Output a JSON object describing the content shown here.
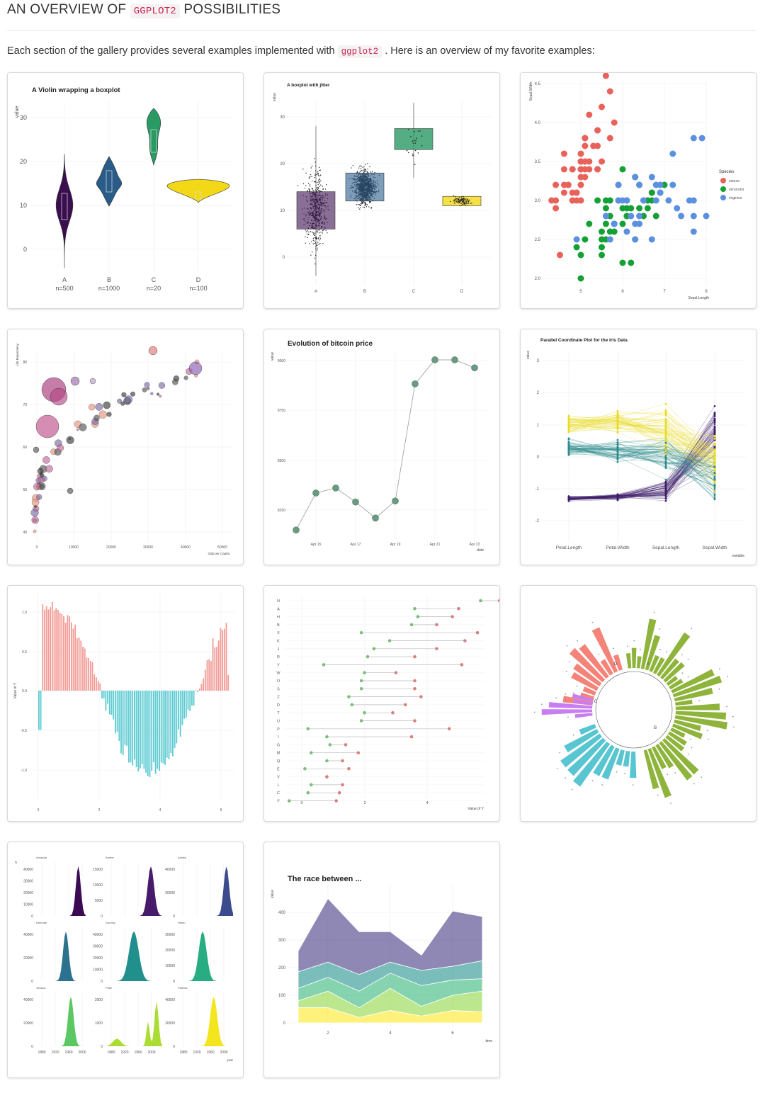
{
  "header": {
    "title_part1": "AN OVERVIEW OF",
    "title_code": "GGPLOT2",
    "title_part2": "POSSIBILITIES",
    "intro_part1": "Each section of the gallery provides several examples implemented with",
    "intro_code": "ggplot2",
    "intro_part2": ". Here is an overview of my favorite examples:"
  },
  "colors": {
    "violin_a": "#3b0f4f",
    "violin_b": "#2a5c8a",
    "violin_c": "#2a9a64",
    "violin_d": "#f2d816",
    "setosa": "#e8625a",
    "versicolor": "#14a035",
    "virginica": "#5b8fe0",
    "bitcoin": "#6a9a82",
    "pos": "#f29b96",
    "neg": "#5ccbd2"
  },
  "violin": {
    "title": "A Violin wrapping a boxplot",
    "ylabel": "value",
    "yticks": [
      "0",
      "10",
      "20",
      "30"
    ],
    "groups": [
      {
        "name": "A",
        "n": "n=500"
      },
      {
        "name": "B",
        "n": "n=1000"
      },
      {
        "name": "C",
        "n": "n=20"
      },
      {
        "name": "D",
        "n": "n=100"
      }
    ]
  },
  "jitter": {
    "title": "A boxplot with jitter",
    "ylabel": "value",
    "yticks": [
      "0",
      "10",
      "20",
      "30"
    ],
    "categories": [
      "A",
      "B",
      "C",
      "D"
    ]
  },
  "iris": {
    "ylabel": "Sepal.Width",
    "xlabel": "Sepal.Length",
    "yticks": [
      "2.0",
      "2.5",
      "3.0",
      "3.5",
      "4.0",
      "4.5"
    ],
    "xticks": [
      "5",
      "6",
      "7",
      "8"
    ],
    "legend_title": "Species",
    "legend": [
      "setosa",
      "versicolor",
      "virginica"
    ]
  },
  "bubble": {
    "ylabel": "Life Expectancy",
    "xlabel": "Gdp per Capita",
    "yticks": [
      "40",
      "50",
      "60",
      "70",
      "80"
    ],
    "xticks": [
      "0",
      "10000",
      "20000",
      "30000",
      "40000",
      "50000"
    ]
  },
  "bitcoin": {
    "title": "Evolution of bitcoin price",
    "ylabel": "value",
    "xlabel": "date",
    "yticks": [
      "8250",
      "8500",
      "8750",
      "9000"
    ],
    "xticks": [
      "Apr 15",
      "Apr 17",
      "Apr 19",
      "Apr 21",
      "Apr 23"
    ]
  },
  "parallel": {
    "title": "Parallel Coordinate Plot for the Iris Data",
    "ylabel": "value",
    "xlabel": "variable",
    "yticks": [
      "-2",
      "-1",
      "0",
      "1",
      "2",
      "3"
    ],
    "xticks": [
      "Petal.Length",
      "Petal.Width",
      "Sepal.Length",
      "Sepal.Width"
    ]
  },
  "diverging": {
    "ylabel": "Value of Y",
    "yticks": [
      "-1.0",
      "-0.5",
      "0.0",
      "0.5",
      "1.0"
    ],
    "xticks": [
      "0",
      "2",
      "4",
      "6"
    ]
  },
  "lollipop": {
    "xlabel": "Value of Y",
    "xticks": [
      "0",
      "2",
      "4"
    ],
    "categories": [
      "N",
      "A",
      "H",
      "B",
      "X",
      "K",
      "J",
      "R",
      "Y",
      "W",
      "O",
      "S",
      "Z",
      "D",
      "T",
      "U",
      "P",
      "I",
      "G",
      "M",
      "Q",
      "E",
      "V",
      "L",
      "C",
      "F"
    ]
  },
  "circular": {
    "groups": [
      "A",
      "B",
      "C",
      "D"
    ]
  },
  "density": {
    "panels": [
      {
        "name": "Amanda",
        "yticks": [
          "0",
          "10000",
          "20000",
          "30000",
          "40000"
        ]
      },
      {
        "name": "Amber",
        "yticks": [
          "0",
          "5000",
          "10000",
          "15000"
        ]
      },
      {
        "name": "Ashley",
        "yticks": [
          "0",
          "20000",
          "40000"
        ]
      },
      {
        "name": "Deborah",
        "yticks": [
          "0",
          "20000",
          "40000"
        ]
      },
      {
        "name": "Dorothy",
        "yticks": [
          "0",
          "10000",
          "20000",
          "30000",
          "40000"
        ]
      },
      {
        "name": "Helen",
        "yticks": [
          "0",
          "10000",
          "20000",
          "30000"
        ]
      },
      {
        "name": "Jessica",
        "yticks": [
          "0",
          "20000",
          "40000"
        ]
      },
      {
        "name": "Patie",
        "yticks": [
          "0",
          "1000",
          "2000"
        ]
      },
      {
        "name": "Patricia",
        "yticks": [
          "0",
          "20000",
          "40000"
        ]
      }
    ],
    "xticks": [
      "1880",
      "1920",
      "1960",
      "2000"
    ],
    "ylabel": "n",
    "xlabel": "year"
  },
  "stacked": {
    "title": "The race between ...",
    "ylabel": "value",
    "xlabel": "time",
    "yticks": [
      "0",
      "100",
      "200",
      "300",
      "400"
    ],
    "xticks": [
      "2",
      "4",
      "6"
    ]
  }
}
